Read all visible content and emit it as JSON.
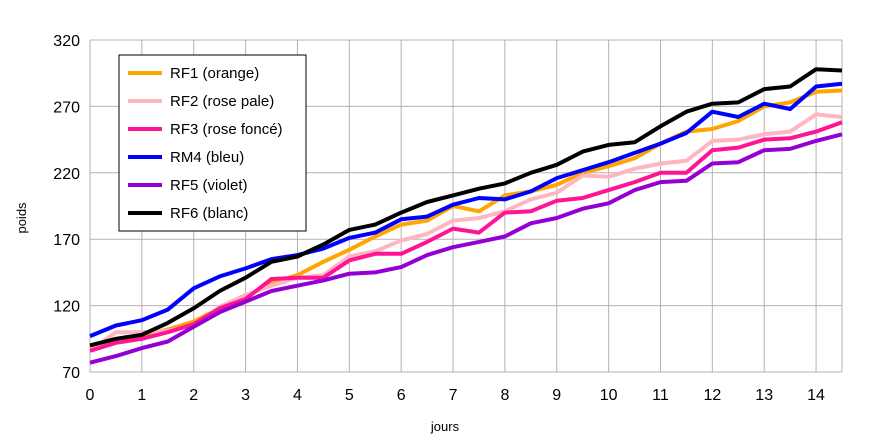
{
  "chart_data": {
    "type": "line",
    "xlabel": "jours",
    "ylabel": "poids",
    "xlim": [
      0,
      14.5
    ],
    "ylim": [
      70,
      320
    ],
    "x_ticks": [
      0,
      1,
      2,
      3,
      4,
      5,
      6,
      7,
      8,
      9,
      10,
      11,
      12,
      13,
      14
    ],
    "y_ticks": [
      70,
      120,
      170,
      220,
      270,
      320
    ],
    "grid": true,
    "legend_position": "top-left",
    "x": [
      0,
      0.5,
      1,
      1.5,
      2,
      2.5,
      3,
      3.5,
      4,
      4.5,
      5,
      5.5,
      6,
      6.5,
      7,
      7.5,
      8,
      8.5,
      9,
      9.5,
      10,
      10.5,
      11,
      11.5,
      12,
      12.5,
      13,
      13.5,
      14,
      14.5
    ],
    "series": [
      {
        "name": "RF1 (orange)",
        "color": "#ffa500",
        "values": [
          88,
          94,
          97,
          102,
          108,
          118,
          127,
          137,
          143,
          153,
          162,
          172,
          181,
          184,
          195,
          191,
          203,
          206,
          211,
          220,
          225,
          231,
          242,
          251,
          253,
          259,
          270,
          273,
          281,
          282
        ]
      },
      {
        "name": "RF2 (rose pale)",
        "color": "#ffb6c1",
        "values": [
          86,
          100,
          100,
          101,
          105,
          119,
          128,
          135,
          141,
          143,
          157,
          161,
          169,
          174,
          184,
          186,
          191,
          200,
          205,
          218,
          217,
          223,
          227,
          229,
          244,
          245,
          249,
          251,
          264,
          262
        ]
      },
      {
        "name": "RF3 (rose foncé)",
        "color": "#ff1493",
        "values": [
          86,
          92,
          95,
          100,
          106,
          118,
          125,
          140,
          141,
          141,
          154,
          159,
          159,
          168,
          178,
          175,
          190,
          191,
          199,
          201,
          207,
          213,
          220,
          220,
          237,
          239,
          245,
          246,
          251,
          258
        ]
      },
      {
        "name": "RM4 (bleu)",
        "color": "#0000ff",
        "values": [
          97,
          105,
          109,
          117,
          133,
          142,
          148,
          155,
          158,
          163,
          171,
          175,
          185,
          187,
          196,
          201,
          200,
          206,
          216,
          222,
          228,
          235,
          242,
          250,
          266,
          262,
          272,
          268,
          285,
          287
        ]
      },
      {
        "name": "RF5 (violet)",
        "color": "#9400d3",
        "values": [
          77,
          82,
          88,
          93,
          104,
          115,
          123,
          131,
          135,
          139,
          144,
          145,
          149,
          158,
          164,
          168,
          172,
          182,
          186,
          193,
          197,
          207,
          213,
          214,
          227,
          228,
          237,
          238,
          244,
          249
        ]
      },
      {
        "name": "RF6 (blanc)",
        "color": "#000000",
        "values": [
          90,
          95,
          98,
          107,
          118,
          131,
          141,
          153,
          157,
          166,
          177,
          181,
          190,
          198,
          203,
          208,
          212,
          220,
          226,
          236,
          241,
          243,
          255,
          266,
          272,
          273,
          283,
          285,
          298,
          297
        ]
      }
    ]
  }
}
